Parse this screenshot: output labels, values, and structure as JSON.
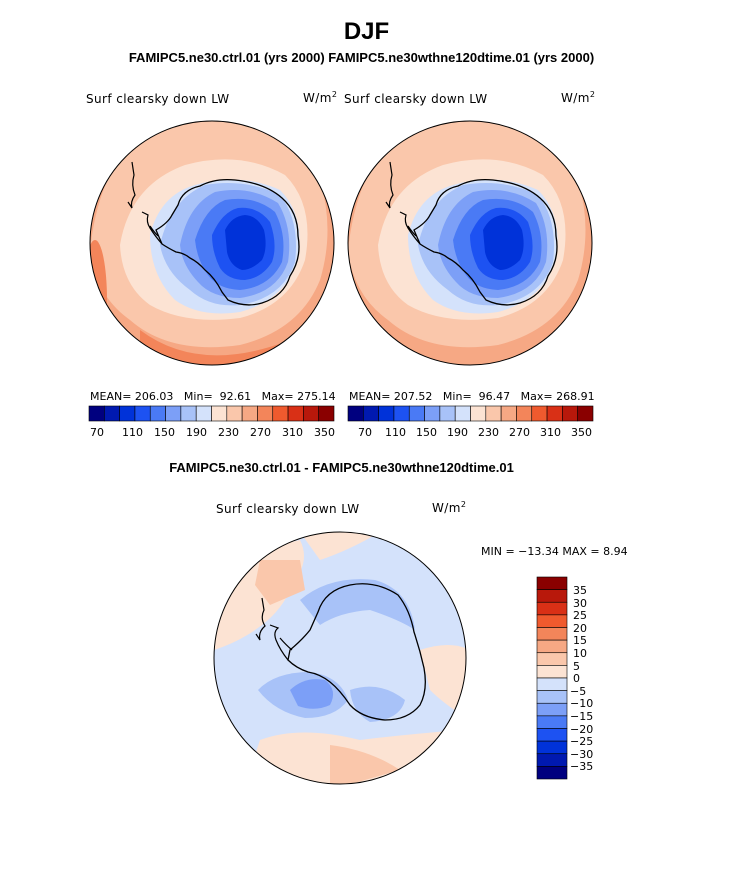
{
  "title": "DJF",
  "runs_header": "FAMIPC5.ne30.ctrl.01 (yrs 2000)   FAMIPC5.ne30wthne120dtime.01 (yrs 2000)",
  "diff_header": "FAMIPC5.ne30.ctrl.01 - FAMIPC5.ne30wthne120dtime.01",
  "variable_label": "Surf clearsky down LW",
  "units_base": "W/m",
  "units_exp": "2",
  "panels": [
    {
      "mean_label": "MEAN=",
      "mean": "206.03",
      "min_label": "Min=",
      "min": "92.61",
      "max_label": "Max=",
      "max": "275.14"
    },
    {
      "mean_label": "MEAN=",
      "mean": "207.52",
      "min_label": "Min=",
      "min": "96.47",
      "max_label": "Max=",
      "max": "268.91"
    }
  ],
  "colorbar_labels": [
    "70",
    "110",
    "150",
    "190",
    "230",
    "270",
    "310",
    "350"
  ],
  "diff_stats": "MIN = −13.34  MAX =   8.94",
  "diff_colorbar_labels": [
    "35",
    "30",
    "25",
    "20",
    "15",
    "10",
    "5",
    "0",
    "−5",
    "−10",
    "−15",
    "−20",
    "−25",
    "−30",
    "−35"
  ],
  "colors": {
    "abs_scale": [
      "#00007f",
      "#0019b0",
      "#0032d9",
      "#1d52f2",
      "#4a7af5",
      "#7c9ff7",
      "#a8c2f8",
      "#d4e2fb",
      "#fce3d3",
      "#fac7ab",
      "#f6a884",
      "#f3855a",
      "#ef5a2e",
      "#d93016",
      "#b8180b",
      "#8a0000"
    ],
    "diff_scale": [
      "#8a0000",
      "#b8180b",
      "#d93016",
      "#ef5a2e",
      "#f3855a",
      "#f6a884",
      "#fac7ab",
      "#fce3d3",
      "#d4e2fb",
      "#a8c2f8",
      "#7c9ff7",
      "#4a7af5",
      "#1d52f2",
      "#0032d9",
      "#0019b0",
      "#00007f"
    ]
  }
}
